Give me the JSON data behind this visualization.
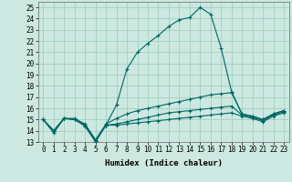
{
  "xlabel": "Humidex (Indice chaleur)",
  "background_color": "#cce8e0",
  "grid_color": "#99ccbb",
  "line_color": "#006666",
  "xlim": [
    -0.5,
    23.5
  ],
  "ylim": [
    13,
    25.5
  ],
  "yticks": [
    13,
    14,
    15,
    16,
    17,
    18,
    19,
    20,
    21,
    22,
    23,
    24,
    25
  ],
  "xticks": [
    0,
    1,
    2,
    3,
    4,
    5,
    6,
    7,
    8,
    9,
    10,
    11,
    12,
    13,
    14,
    15,
    16,
    17,
    18,
    19,
    20,
    21,
    22,
    23
  ],
  "line1": [
    15.0,
    13.8,
    15.1,
    15.0,
    14.4,
    13.0,
    14.5,
    16.3,
    19.5,
    21.0,
    21.8,
    22.5,
    23.3,
    23.9,
    24.1,
    25.0,
    24.4,
    21.4,
    17.5,
    15.5,
    15.3,
    15.0,
    15.5,
    15.8
  ],
  "line2": [
    15.0,
    14.0,
    15.1,
    15.1,
    14.6,
    13.2,
    14.6,
    15.1,
    15.5,
    15.8,
    16.0,
    16.2,
    16.4,
    16.6,
    16.8,
    17.0,
    17.2,
    17.3,
    17.4,
    15.5,
    15.3,
    15.0,
    15.5,
    15.8
  ],
  "line3": [
    15.0,
    14.0,
    15.1,
    15.0,
    14.5,
    13.1,
    14.5,
    14.6,
    14.8,
    15.0,
    15.2,
    15.4,
    15.6,
    15.7,
    15.8,
    15.9,
    16.0,
    16.1,
    16.2,
    15.4,
    15.2,
    14.9,
    15.4,
    15.7
  ],
  "line4": [
    15.0,
    14.0,
    15.1,
    15.0,
    14.5,
    13.1,
    14.5,
    14.5,
    14.6,
    14.7,
    14.8,
    14.9,
    15.0,
    15.1,
    15.2,
    15.3,
    15.4,
    15.5,
    15.6,
    15.3,
    15.1,
    14.8,
    15.3,
    15.6
  ],
  "marker": "+",
  "markersize": 3,
  "linewidth": 0.8,
  "tick_fontsize": 5.5,
  "xlabel_fontsize": 6.5
}
